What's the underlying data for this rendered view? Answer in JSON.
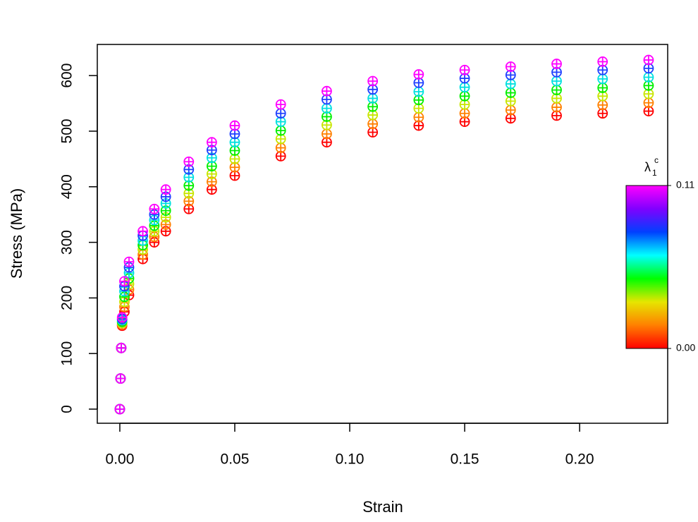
{
  "chart_data": {
    "type": "scatter",
    "x_label": "Strain",
    "y_label": "Stress (MPa)",
    "x": [
      0,
      0.0003,
      0.0006,
      0.001,
      0.002,
      0.004,
      0.01,
      0.015,
      0.02,
      0.03,
      0.04,
      0.05,
      0.07,
      0.09,
      0.11,
      0.13,
      0.15,
      0.17,
      0.19,
      0.21,
      0.23
    ],
    "series": [
      {
        "color": "#ff0000",
        "values": [
          0,
          55,
          110,
          150,
          175,
          205,
          270,
          300,
          320,
          360,
          395,
          420,
          455,
          480,
          498,
          510,
          517,
          523,
          528,
          532,
          536
        ]
      },
      {
        "color": "#ff8000",
        "values": [
          0,
          55,
          110,
          152,
          184,
          215,
          278,
          310,
          332,
          374,
          409,
          435,
          470,
          495,
          513,
          525,
          532,
          538,
          543,
          547,
          551
        ]
      },
      {
        "color": "#c8e600",
        "values": [
          0,
          55,
          110,
          155,
          193,
          225,
          287,
          320,
          345,
          388,
          423,
          450,
          486,
          511,
          529,
          541,
          548,
          554,
          559,
          563,
          567
        ]
      },
      {
        "color": "#00f000",
        "values": [
          0,
          55,
          110,
          157,
          202,
          235,
          295,
          330,
          357,
          402,
          437,
          465,
          501,
          526,
          544,
          556,
          563,
          569,
          574,
          578,
          582
        ]
      },
      {
        "color": "#00e0e0",
        "values": [
          0,
          55,
          110,
          160,
          212,
          245,
          303,
          340,
          370,
          417,
          452,
          480,
          517,
          541,
          559,
          571,
          579,
          585,
          590,
          594,
          597
        ]
      },
      {
        "color": "#2040ff",
        "values": [
          0,
          55,
          110,
          162,
          221,
          255,
          312,
          350,
          382,
          431,
          466,
          495,
          532,
          557,
          575,
          587,
          595,
          601,
          606,
          610,
          613
        ]
      },
      {
        "color": "#ff00ff",
        "values": [
          0,
          55,
          110,
          165,
          230,
          265,
          320,
          360,
          395,
          445,
          480,
          510,
          548,
          572,
          590,
          602,
          610,
          616,
          621,
          625,
          628
        ]
      }
    ],
    "xlim": [
      -0.0098,
      0.2383
    ],
    "ylim": [
      -25.4,
      656
    ],
    "xticks": [
      {
        "value": 0,
        "label": "0.00"
      },
      {
        "value": 0.05,
        "label": "0.05"
      },
      {
        "value": 0.1,
        "label": "0.10"
      },
      {
        "value": 0.15,
        "label": "0.15"
      },
      {
        "value": 0.2,
        "label": "0.20"
      }
    ],
    "yticks": [
      0,
      100,
      200,
      300,
      400,
      500,
      600
    ],
    "colorbar": {
      "label": "λ",
      "subscript": "1",
      "superscript": "c",
      "lim": [
        0,
        0.11
      ],
      "ticks": [
        {
          "value": 0,
          "label": "0.00"
        },
        {
          "value": 0.11,
          "label": "0.11"
        }
      ],
      "colors": [
        "#ff0000",
        "#ff8000",
        "#e6e600",
        "#00ff00",
        "#00ffff",
        "#0040ff",
        "#8000ff",
        "#ff00ff"
      ]
    }
  }
}
